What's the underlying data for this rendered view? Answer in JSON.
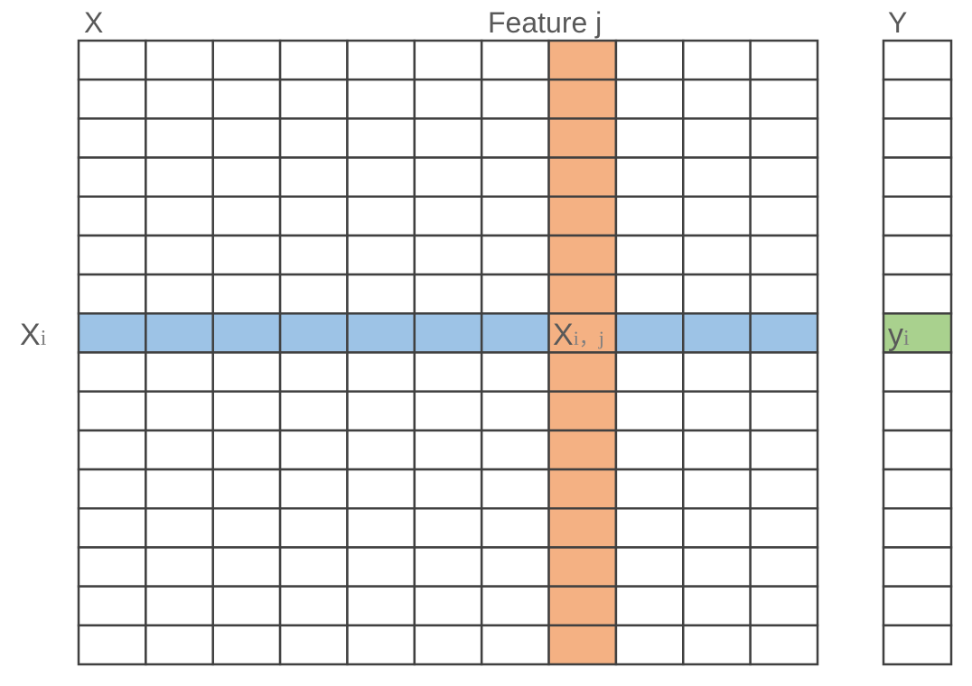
{
  "matrix_x": {
    "title": "X",
    "rows": 16,
    "cols": 11,
    "highlight_row": 8,
    "highlight_col": 8,
    "column_label": "Feature j",
    "row_label": {
      "main": "X",
      "sub": "i"
    },
    "cell_label": {
      "main": "X",
      "sub": "i，j"
    }
  },
  "matrix_y": {
    "title": "Y",
    "rows": 16,
    "highlight_row": 8,
    "cell_label": {
      "main": "y",
      "sub": "i"
    }
  },
  "colors": {
    "row_highlight": "#9dc3e6",
    "col_highlight": "#f4b183",
    "y_highlight": "#a9d18e",
    "grid_line": "#404040",
    "text": "#595959"
  }
}
